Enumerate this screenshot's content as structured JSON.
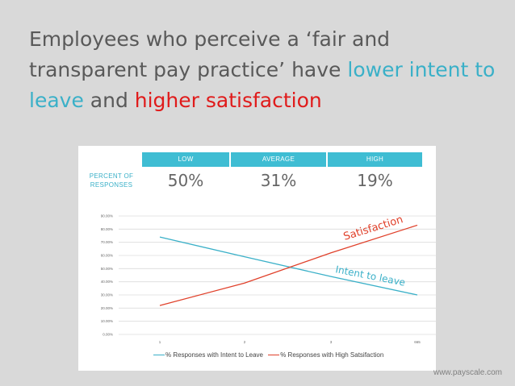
{
  "title": {
    "part1": "Employees who perceive a ‘fair and transparent pay practice’ have ",
    "blue": "lower intent to leave",
    "mid": " and ",
    "red": "higher satisfaction"
  },
  "table": {
    "row_label": "PERCENT OF RESPONSES",
    "headers": [
      "LOW",
      "AVERAGE",
      "HIGH"
    ],
    "values": [
      "50%",
      "31%",
      "19%"
    ]
  },
  "colors": {
    "blue": "#3ab0c8",
    "red": "#e0402a",
    "header_bg": "#3fbdd3"
  },
  "chart_data": {
    "type": "line",
    "x": [
      "1",
      "2",
      "3",
      "665"
    ],
    "ylim": [
      0,
      0.9
    ],
    "yticks": [
      "0.00%",
      "10.00%",
      "20.00%",
      "30.00%",
      "40.00%",
      "50.00%",
      "60.00%",
      "70.00%",
      "80.00%",
      "90.00%"
    ],
    "series": [
      {
        "name": "% Responses with Intent to Leave",
        "values": [
          0.74,
          0.59,
          0.44,
          0.3
        ],
        "color": "#3ab0c8",
        "annotation": "Intent to leave"
      },
      {
        "name": "% Responses with High Satsifaction",
        "values": [
          0.22,
          0.39,
          0.62,
          0.83
        ],
        "color": "#e0402a",
        "annotation": "Satisfaction"
      }
    ]
  },
  "footer": "www.payscale.com"
}
